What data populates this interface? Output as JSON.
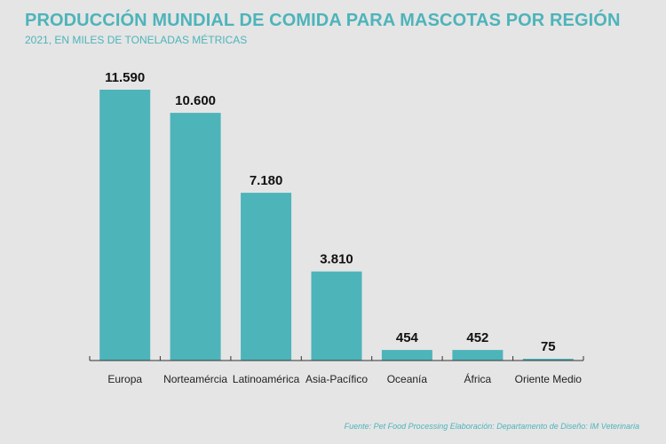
{
  "header": {
    "title": "PRODUCCIÓN MUNDIAL DE COMIDA PARA MASCOTAS POR REGIÓN",
    "subtitle": "2021, EN MILES DE TONELADAS MÉTRICAS"
  },
  "footer": {
    "source": "Fuente: Pet Food Processing  Elaboración: Departamento de Diseño: IM Veterinaria"
  },
  "chart_data": {
    "type": "bar",
    "categories": [
      "Europa",
      "Norteamércia",
      "Latinoamérica",
      "Asia-Pacífico",
      "Oceanía",
      "África",
      "Oriente Medio"
    ],
    "values": [
      11590,
      10600,
      7180,
      3810,
      454,
      452,
      75
    ],
    "value_labels": [
      "11.590",
      "10.600",
      "7.180",
      "3.810",
      "454",
      "452",
      "75"
    ],
    "title": "PRODUCCIÓN MUNDIAL DE COMIDA PARA MASCOTAS POR REGIÓN",
    "subtitle": "2021, EN MILES DE TONELADAS MÉTRICAS",
    "xlabel": "",
    "ylabel": "",
    "ylim": [
      0,
      11590
    ],
    "grid": false,
    "legend": "none",
    "bar_color": "#4db4ba"
  }
}
